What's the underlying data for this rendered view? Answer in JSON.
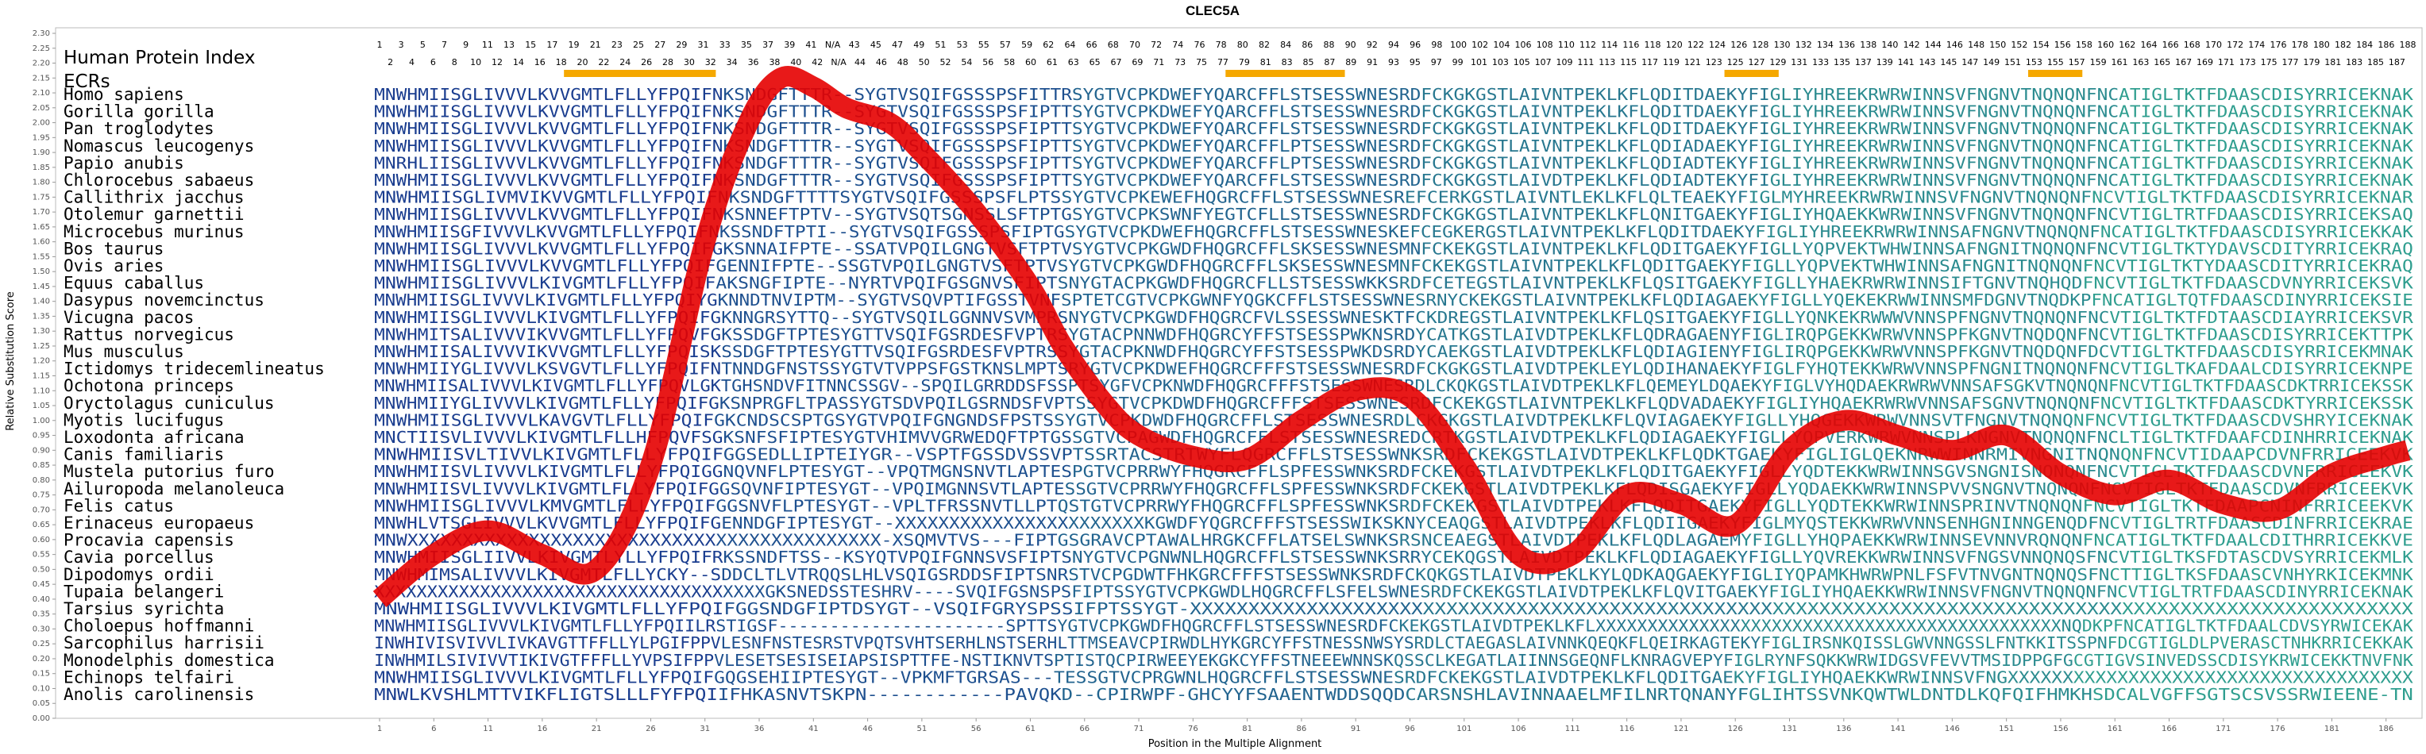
{
  "chart_data": {
    "type": "line",
    "title": "CLEC5A",
    "xlabel": "Position in the Multiple Alignment",
    "ylabel": "Relative Substitution Score",
    "ylim": [
      0.0,
      2.3
    ],
    "y_ticks": [
      "0.00",
      "0.05",
      "0.10",
      "0.15",
      "0.20",
      "0.25",
      "0.30",
      "0.35",
      "0.40",
      "0.45",
      "0.50",
      "0.55",
      "0.60",
      "0.65",
      "0.70",
      "0.75",
      "0.80",
      "0.85",
      "0.90",
      "0.95",
      "1.00",
      "1.05",
      "1.10",
      "1.15",
      "1.20",
      "1.25",
      "1.30",
      "1.35",
      "1.40",
      "1.45",
      "1.50",
      "1.55",
      "1.60",
      "1.65",
      "1.70",
      "1.75",
      "1.80",
      "1.85",
      "1.90",
      "1.95",
      "2.00",
      "2.05",
      "2.10",
      "2.15",
      "2.20",
      "2.25",
      "2.30"
    ],
    "x_tick_labels": [
      "1",
      "6",
      "11",
      "16",
      "21",
      "26",
      "31",
      "36",
      "41",
      "46",
      "51",
      "56",
      "61",
      "66",
      "71",
      "76",
      "81",
      "86",
      "91",
      "96",
      "101",
      "106",
      "111",
      "116",
      "121",
      "126",
      "131",
      "136",
      "141",
      "146",
      "151",
      "156",
      "161",
      "166",
      "171",
      "176",
      "181",
      "186"
    ],
    "xlim": [
      1,
      188
    ],
    "grid": false,
    "header": {
      "label_index": "Human Protein Index",
      "label_ecrs": "ECRs",
      "index_row_top": [
        "1",
        "3",
        "5",
        "7",
        "9",
        "11",
        "13",
        "15",
        "17",
        "19",
        "21",
        "23",
        "25",
        "27",
        "29",
        "31",
        "33",
        "35",
        "37",
        "39",
        "41",
        "N/A",
        "43",
        "45",
        "47",
        "49",
        "51",
        "53",
        "55",
        "57",
        "59",
        "62",
        "64",
        "66",
        "68",
        "70",
        "72",
        "74",
        "76",
        "78",
        "80",
        "82",
        "84",
        "86",
        "88",
        "90",
        "92",
        "94",
        "96",
        "98",
        "100",
        "102",
        "104",
        "106",
        "108",
        "110",
        "112",
        "114",
        "116",
        "118",
        "120",
        "122",
        "124",
        "126",
        "128",
        "130",
        "132",
        "134",
        "136",
        "138",
        "140",
        "142",
        "144",
        "146",
        "148",
        "150",
        "152",
        "154",
        "156",
        "158",
        "160",
        "162",
        "164",
        "166",
        "168",
        "170",
        "172",
        "174",
        "176",
        "178",
        "180",
        "182",
        "184",
        "186",
        "188"
      ],
      "index_row_bottom": [
        "2",
        "4",
        "6",
        "8",
        "10",
        "12",
        "14",
        "16",
        "18",
        "20",
        "22",
        "24",
        "26",
        "28",
        "30",
        "32",
        "34",
        "36",
        "38",
        "40",
        "42",
        "N/A",
        "44",
        "46",
        "48",
        "50",
        "52",
        "54",
        "56",
        "58",
        "60",
        "61",
        "63",
        "65",
        "67",
        "69",
        "71",
        "73",
        "75",
        "77",
        "79",
        "81",
        "83",
        "85",
        "87",
        "89",
        "91",
        "93",
        "95",
        "97",
        "99",
        "101",
        "103",
        "105",
        "107",
        "109",
        "111",
        "113",
        "115",
        "117",
        "119",
        "121",
        "123",
        "125",
        "127",
        "129",
        "131",
        "133",
        "135",
        "137",
        "139",
        "141",
        "143",
        "145",
        "147",
        "149",
        "151",
        "153",
        "155",
        "157",
        "159",
        "161",
        "163",
        "165",
        "167",
        "169",
        "171",
        "173",
        "175",
        "177",
        "179",
        "181",
        "183",
        "185",
        "187"
      ],
      "ecr_ranges": [
        [
          18,
          32
        ],
        [
          79,
          90
        ],
        [
          125,
          130
        ],
        [
          153,
          158
        ]
      ],
      "ecr_color": "#f5a800"
    },
    "series": [
      {
        "color": "#e60000",
        "x": [
          1,
          6,
          11,
          16,
          21,
          26,
          31,
          35,
          38,
          41,
          44,
          48,
          51,
          56,
          61,
          64,
          68,
          71,
          76,
          81,
          86,
          91,
          96,
          101,
          106,
          111,
          116,
          121,
          126,
          131,
          136,
          141,
          146,
          151,
          156,
          161,
          166,
          171,
          176,
          181,
          186,
          188
        ],
        "y": [
          0.4,
          0.55,
          0.63,
          0.55,
          0.5,
          0.85,
          1.6,
          2.0,
          2.15,
          2.12,
          2.05,
          2.0,
          1.9,
          1.7,
          1.45,
          1.25,
          1.05,
          0.95,
          0.88,
          0.87,
          1.0,
          1.1,
          1.08,
          0.85,
          0.55,
          0.55,
          0.75,
          0.72,
          0.65,
          0.9,
          1.0,
          0.95,
          0.9,
          0.95,
          0.82,
          0.75,
          0.8,
          0.72,
          0.7,
          0.82,
          0.88,
          0.9
        ]
      }
    ],
    "alignment": {
      "species": [
        "Homo sapiens",
        "Gorilla gorilla",
        "Pan troglodytes",
        "Nomascus leucogenys",
        "Papio anubis",
        "Chlorocebus sabaeus",
        "Callithrix jacchus",
        "Otolemur garnettii",
        "Microcebus murinus",
        "Bos taurus",
        "Ovis aries",
        "Equus caballus",
        "Dasypus novemcinctus",
        "Vicugna pacos",
        "Rattus norvegicus",
        "Mus musculus",
        "Ictidomys tridecemlineatus",
        "Ochotona princeps",
        "Oryctolagus cuniculus",
        "Myotis lucifugus",
        "Loxodonta africana",
        "Canis familiaris",
        "Mustela putorius furo",
        "Ailuropoda melanoleuca",
        "Felis catus",
        "Erinaceus europaeus",
        "Procavia capensis",
        "Cavia porcellus",
        "Dipodomys ordii",
        "Tupaia belangeri",
        "Tarsius syrichta",
        "Choloepus hoffmanni",
        "Sarcophilus harrisii",
        "Monodelphis domestica",
        "Echinops telfairi",
        "Anolis carolinensis"
      ],
      "sequences": [
        "MNWHMIISGLIVVVLKVVGMTLFLLYFPQIFNKSNDGFTTTR--SYGTVSQIFGSSSPSFITTRSYGTVCPKDWEFYQARCFFLSTSESSWNESRDFCKGKGSTLAIVNTPEKLKFLQDITDAEKYFIGLIYHREEKRWRWINNSVFNGNVTNQNQNFNCATIGLTKTFDAASCDISYRRICEKNAK",
        "MNWHMIISGLIVVVLKVVGMTLFLLYFPQIFNKSNDGFTTTR--SYGTVSQIFGSSSPSFIPTTSYGTVCPKDWEFYQARCFFLSTSESSWNESRDFCKGKGSTLAIVNTPEKLKFLQDITDAEKYFIGLIYHREEKRWRWINNSVFNGNVTNQNQNFNCATIGLTKTFDAASCDISYRRICEKNAK",
        "MNWHMIISGLIVVVLKVVGMTLFLLYFPQIFNKSNDGFTTTR--SYGTVSQIFGSSSPSFIPTTSYGTVCPKDWEFYQARCFFLSTSESSWNESRDFCKGKGSTLAIVNTPEKLKFLQDITDAEKYFIGLIYHREEKRWRWINNSVFNGNVTNQNQNFNCATIGLTKTFDAASCDISYRRICEKNAK",
        "MNWHMIISGLIVVVLKVVGMTLFLLYFPQIFNKSNDGFTTTR--SYGTVSQIFGSSSPSFIPTTSYGTVCPKDWEFYQARCFFLPTSESSWNESRDFCKGKGSTLAIVNTPEKLKFLQDIADAEKYFIGLIYHREEKRWRWINNSVFNGNVTNQNQNFNCATIGLTKTFDAASCDISYRRICEKNAK",
        "MNRHLIISGLIVVVLKVVGMTLFLLYFPQIFNKSNDGFTTTR--SYGTVSQIFGSSSPSFIPTTSYGTVCPKDWEFYQARCFFLPTSESSWNESRDFCKGKGSTLAIVNTPEKLKFLQDIADTEKYFIGLIYHREEKRWRWINNSVFNGNVTNQNQNFNCATIGLTKTFDAASCDISYRRICEKNAK",
        "MNWHMIISGLIVVVLKVVGMTLFLLYFPQIFNKSNDGFTTTR--SYGTVSQIFGSSSPSFIPTTSYGTVCPKDWEFYQARCFFLSTSESSWNESRDFCKGKGSTLAIVDTPEKLKFLQDIADTEKYFIGLIYHREEKRWRWINNSVFNGNVTNQNQNFNCATIGLTKTFDAASCDISYRRICEKNAK",
        "MNWHMIISGLIVMVIKVVGMTLFLLYFPQIFNKSNDGFTTTTSYGTVSQIFGSSSPSFLPTSSYGTVCPKEWEFHQGRCFFLSTSESSWNESREFCERKGSTLAIVNTLEKLKFLQLTEAEKYFIGLMYHREEKRWRWINNSVFNGNVTNQNQNFNCVTIGLTKTFDAASCDISYRRICEKNAR",
        "MNWHMIISGLIVVVLKVVGMTLFLLYFPQIFNKSNNEFTPTV--SYGTVSQTSGNSSLSFTPTGSYGTVCPKSWNFYEGTCFLLSTSESSWNESRDFCKGKGSTLAIVNTPEKLKFLQNITGAEKYFIGLIYHQAEKKWRWINNSVFNGNVTNQNQNFNCVTIGLTRTFDAASCDISYRRICEKSAQ",
        "MNWHMIISGFIVVVLKVVGMTLFLLYFPQIFNKSSNDFTPTI--SYGTVSQIFGSSSPSFIPTGSYGTVCPKDWEFHQGRCFFLSTSESSWNESKEFCEGKERGSTLAIVNTPEKLKFLQDITDAEKYFIGLIYHREEKRWRWINNSAFNGNVTNQNQNFNCATIGLTKTFDAASCDISYRRICEKKAK",
        "MNWHMIISGLIVVVLKVVGMTLFLLYFPQIFGKSNNAIFPTE--SSATVPQILGNGTVSFTPTVSYGTVCPKGWDFHQGRCFFLSKSESSWNESMNFCKEKGSTLAIVNTPEKLKFLQDITGAEKYFIGLLYQPVEKTWHWINNSAFNGNITNQNQNFNCVTIGLTKTYDAVSCDITYRRICEKRAQ",
        "MNWHMIISGLIVVVLKVVGMTLFLLYFPQIFGENNIFPTE--SSGTVPQILGNGTVSFTPTVSYGTVCPKGWDFHQGRCFFLSKSESSWNESMNFCKEKGSTLAIVNTPEKLKFLQDITGAEKYFIGLLYQPVEKTWHWINNSAFNGNITNQNQNFNCVTIGLTKTYDAASCDITYRRICEKRAQ",
        "MNWHMIISGLIVVVLKIVGMTLFLLYFPQIFAKSNGFIPTE--NYRTVPQIFGSGNVSFIPTSNYGTACPKGWDFHQGRCFLLSTSESSWKKSRDFCETEGSTLAIVNTPEKLKFLQSITGAEKYFIGLLYHAEKRWRWINNSIFTGNVTNQHQDFNCVTIGLTKTFDAASCDVNYRRICEKSVK",
        "MNWHMIISGLIVVVLKIVGMTLFLLYFPQIYGKNNDTNVIPTM--SYGTVSQVPTIFGSSTVNFSPTETCGTVCPKGWNFYQGKCFFLSTSESSWNESRNYCKEKGSTLAIVNTPEKLKFLQDIAGAEKYFIGLLYQEKEKRWWINNSMFDGNVTNQDKPFNCATIGLTQTFDAASCDINYRRICEKSIE",
        "MNWHMIISGLIVVVLKIVGMTLFLLYFPQIFGKNNGRSYTTQ--SYGTVSQILGGNNVSVMPRSNYGTVCPKGWDFHQGRCFVLSSESSWNESKTFCKDREGSTLAIVNTPEKLKFLQSITGAEKYFIGLLYQNKEKRWWWVNNSPFNGNVTNQNQNFNCVTIGLTKTFDTAASCDIAYRRICEKSVR",
        "MNWHMITSALIVVVIKVVGMTLFLLYFPQVFGKSSDGFTPTESYGTTVSQIFGSRDESFVPTRSYGTACPNNWDFHQGRCYFFSTSESSPWKNSRDYCATKGSTLAIVDTPEKLKFLQDRAGAENYFIGLIRQPGEKKWRWVNNSPFKGNVTNQDQNFNCVTIGLTKTFDAASCDISYRRICEKTTPK",
        "MNWHMIISALIVVVIKVVGMTLFLLYFPQISKSSDGFTPTESYGTTVSQIFGSRDESFVPTRSSYGTACPKNWDFHQGRCYFFSTSESSPWKDSRDYCAEKGSTLAIVDTPEKLKFLQDIAGIENYFIGLIRQPGEKKWRWVNNSPFKGNVTNQDQNFDCVTIGLTKTFDAASCDISYRRICEKMNAK",
        "MNWHMIIYGLIVVVLKSVGVTLFLLYFPQIFNTNNDGFNSTSSYGTVTVPPSFGSTKNSLMPTSRYGTVCPKDWEFHQGRCFFFSTSESSWNESRDFCKGKGSTLAIVDTPEKLEYLQDIHANAEKYFIGLFYHQTEKKWRWVNNSPFNGNITNQNQNFNCVTIGLTKAFDAALCDISYRRICEKNPE",
        "MNWHMIISALIVVVLKIVGMTLFLLYFPQVLGKTGHSNDVFITNNCSSGV--SPQILGRRDDSFSSPTSYGFVCPKNWDFHQGRCFFFSTSESSWNESRDLCKQKGSTLAIVDTPEKLKFLQEMEYLDQAEKYFIGLVYHQDAEKRWRWVNNSAFSGKVTNQNQNFNCVTIGLTKTFDAASCDKTRRICEKSSK",
        "MNWHMIIYGLIVVVLKIVGMTLFLLYFPQIFGKSNPRGFLTPASSYGTSDVPQILGSRNDSFVPTSSYGTVCPKDWDFHQGRCFFFSTSESSWNESRDFCKEKGSTLAIVNTPEKLKFLQDVADAEKYFIGLIYHQAEKRWRWVNNSAFSGNVTNQNQNFNCVTIGLTKTFDAASCDKTYRRICEKSSK",
        "MNWHMIISGLIVVVLKAVGVTLFLLYFPQIFGKCNDSCSPTGSYGTVPQIFGNGNDSFPSTSSYGTVCPKDWDFHQGRCFFLSTSESSWNESRDLCKGKGSTLAIVDTPEKLKFLQVIAGAEKYFIGLLYHQGEKKWRWVNNSVTFNGNVTNQNQNFNCVTIGLTKTFDAASCDVSHRYICEKNAK",
        "MNCTIISVLIVVVLKIVGMTLFLLHFPQVFSGKSNFSFIPTESYGTVHIMVVGRWEDQFTPTGSSGTVCPAGWDFHQGRCFFLSTSESSWNESREDCRTKGSTLAIVDTPEKLKFLQDIAGAEKYFIGLLYQPVERKWRWVNNSPLKNGNVTNQNQNFNCLTIGLTKTFDAAFCDINHRRICEKNAK",
        "MNWHMIISVLTIVVLKIVGMTLFLLYFPQIFGGSEDLLIPTEIYGR--VSPTFGSSDVSSVPTSSRTACSTRTWYFLQGRCFFLSTSESSWNKSRDFCKEKGSTLAIVDTPEKLKFLQDKTGAEKYFIGLIGLQEKNRWWINNRMIVNGNITNQNQNFNCVTIDAAPCDVNFRRICEEKVK",
        "MNWHMIISVLIVVVLKIVGMTLFLLYFPQIGGNQVNFLPTESYGT--VPQTMGNSNVTLAPTESPGTVCPRRWYFHQGRCFFLSPFESSWNKSRDFCKEKGSTLAIVDTPEKLKFLQDITGAEKYFIGLLYQDTEKKWRWINNSGVSNGNISNQNQNFNCVTIGLTKTFDAASCDVNFRRICEEKVK",
        "MNWHMIISVLIVVVLKIVGMTLFLLYFPQIFGGSQVNFIPTESYGT--VPQIMGNNSVTLAPTESSGTVCPRRWYFHQGRCFFLSPFESSWNKSRDFCKEKGSTLAIVDTPEKLKFLQDISGAEKYFIGLLYQDAEKKWRWINNSPVVSNGNVTNQNQNFNCVTIGLTKTFDAASCDVNFRRICEEKVK",
        "MNWHMIISGLIVVVLKMVGMTLFLLYFPQIFGGSNVFLPTESYGT--VPLTFRSSNVTLLPTQSTGTVCPRRWYFHQGRCFFLSPFESSWNKSRDFCKEKGSTLAIVDTPEKLKFLQDITGAEKYFIGLLYQDTEKKWRWINNSPRINVTNQNQNFNCVTIGLTKTFDAAPCNINFRRICEEKVK",
        "MNWHLVTSGLIVVVLKVVGMTLFLLYFPQIFGENNDGFIPTESYGT--XXXXXXXXXXXXXXXXXXXXXXXKGWDFYQGRCFFFSTSESSWIKSKNYCEAQGSTLAIVDTPEKLKFLQDIIGAEKYFIGLMYQSTEKKWRWVNNSENHGNINNGENQDFNCVTIGLTRTFDAASCDINFRRICEKRAE",
        "MNWXXXXXXXXXXXXXXXXXXXXXXXXXXXXXXXXXXXXXXXXXXX-XSQMVTVS---FIPTGSGRAVCPTAWALHRGKCFFLATSELSWNKSRSNCEAEGSTLAIVDTPEKLKFLQDLAGAEMYFIGLLYHQPAEKKWRWINNSEVNNVRQNQNFNCATIGLTKTFDAALCDITHRRICEKKVE",
        "MNWHMIISGLIIVVLKIVGMTLYLLYFPQIFRKSSNDFTSS--KSYQTVPQIFGNNSVSFIPTSNYGTVCPGNWNLHQGRCFFLSTSESSWNKSRRYCEKQGSTLAIVDTPEKLKFLQDIAGAEKYFIGLLYQVREKKWRWINNSVFNGSVNNQNQSFNCVTIGLTKSFDTASCDVSYRRICEKMLK",
        "MNWHMIMSALIVVVLKIVGMTLFLLYCKY--SDDCLTLVTRQQSLHLVSQIGSRDDSFIPTSNRSTVCPGDWTFHKGRCFFFSTSESSWNKSRDFCKQKGSTLAIVDTPEKLKYLQDKAQGAEKYFIGLIYQPAMKHWRWPNLFSFVTNVGNTNQNQSFNCTTIGLTKSFDAASCVNHYRKICEKMNK",
        "XXXXXXXXXXXXXXXXXXXXXXXXXXXXXXXXXXXXXGKSNEDSSTESHRV----SVQIFGSNSPSFIPTSSYGTVCPKGWDLHQGRCFFLSFELSWNESRDFCKEKGSTLAIVDTPEKLKFLQVITGAEKYFIGLIYHQAEKKWRWINNSVFNGNVTNQNQNFNCVTIGLTRTFDAASCDINYRRICEKNAK",
        "MNWHMIISGLIVVVLKIVGMTLFLLYFPQIFGGSNDGFIPTDSYGT--VSQIFGRYSPSSIFPTSSYGT-XXXXXXXXXXXXXXXXXXXXXXXXXXXXXXXXXXXXXXXXXXXXXXXXXXXXXXXXXXXXXXXXXXXXXXXXXXXXXXXXXXXXXXXXXXXXXXXXXXXXXXXXX",
        "MNWHMIISGLIVVVLKIVGMTLFLLYFPQIILRSTIGSF----------------------SPTTSYGTVCPKGWDFHQGRCFFLSTSESSWNESRDFCKEKGSTLAIVDTPEKLKFLXXXXXXXXXXXXXXXXXXXXXXXXXXXXXXXXXXXXXXXXXXXXXNQDKPFNCATIGLTKTFDAALCDVSYRWICEKAK",
        "INWHIVISVIVVLIVKAVGTTFFLLYLPGIFPPVLESNFNSTESRSTVPQTSVHTSERHLNSTSERHLTTMSEAVCPIRWDLHYKGRCYFFSTNESSNWSYSRDLCTAEGASLAIVNNKQEQKFLQEIRKAGTEKYFIGLIRSNKQISSLGWVNNGSSLFNTKKITSSPNFDCGTIGLDLPVERASCTNHKRRICEKKAK",
        "INWHMILSIVIVVTIKIVGTFFFLLYVPSIFPPVLESETSESISEIAPSISPTTFE-NSTIKNVTSPTISTQCPIRWEEYEKGKCYFFSTNEEEWNNSKQSSCLKEGATLAIINNSGEQNFLKNRAGVEPYFIGLRYNFSQKKWRWIDGSVFEVVTMSIDPPGFGCGTIGVSINVEDSSCDISYKRWICEKKTNVFNK",
        "MNWHMIISGLIVVVLKIVGMTLFLLYFPQIFGQGSEHIIPTESYGT--VPKMFTGRSAS---TESSGTVCPRGWNLHQGRCFFLSTSESSWNESRDFCKEKGSTLAIVDTPEKLKFLQDITGAEKYFIGLIYHQAEKKWRWINNSVFNGXXXXXXXXXXXXXXXXXXXXXXXXXXXXXXXXXXXXX",
        "MNWLKVSHLMTTVIKFLIGTSLLLFYFPQIIFHKASNVTSKPN------------PAVQKD--CPIRWPF-GHCYYFSAAENTWDDSQQDCARSNSHLAVINNAAELMFILNRTQNANYFGLIHTSSVNKQWTWLDNTDLKQFQIFHMKHSDCALVGFFSGTSCSVSSRWIEENE-TN"
      ],
      "species_color": "#000000",
      "seq_color_start": "#1a3d8f",
      "seq_color_end": "#2f9e8f"
    }
  }
}
